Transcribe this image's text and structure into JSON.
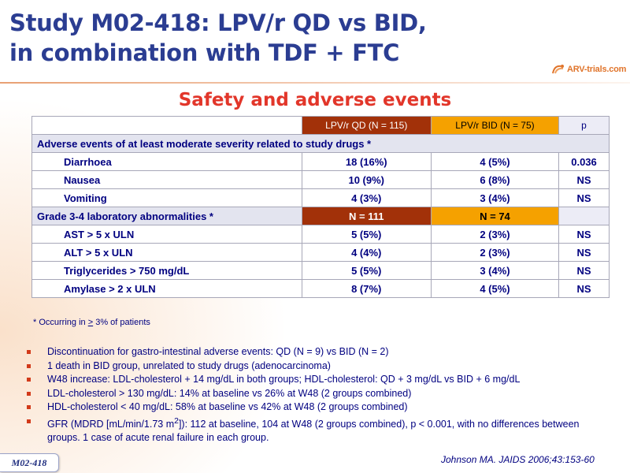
{
  "title": {
    "line1": "Study M02-418: LPV/r QD vs BID,",
    "line2": "in combination with TDF + FTC"
  },
  "logo": {
    "text": "ARV-trials.com",
    "icon": "arv-trials-logo-icon"
  },
  "subtitle": "Safety and adverse events",
  "table": {
    "header": {
      "qd": "LPV/r QD (N = 115)",
      "bid": "LPV/r BID (N = 75)",
      "p": "p"
    },
    "section1": "Adverse events of at least moderate severity related to study drugs *",
    "section1_rows": [
      {
        "label": "Diarrhoea",
        "qd": "18 (16%)",
        "bid": "4 (5%)",
        "p": "0.036"
      },
      {
        "label": "Nausea",
        "qd": "10 (9%)",
        "bid": "6 (8%)",
        "p": "NS"
      },
      {
        "label": "Vomiting",
        "qd": "4 (3%)",
        "bid": "3 (4%)",
        "p": "NS"
      }
    ],
    "section2": {
      "label": "Grade 3-4 laboratory abnormalities *",
      "qd": "N = 111",
      "bid": "N = 74"
    },
    "section2_rows": [
      {
        "label": "AST > 5 x ULN",
        "qd": "5 (5%)",
        "bid": "2 (3%)",
        "p": "NS"
      },
      {
        "label": "ALT > 5 x ULN",
        "qd": "4 (4%)",
        "bid": "2 (3%)",
        "p": "NS"
      },
      {
        "label": "Triglycerides > 750 mg/dL",
        "qd": "5 (5%)",
        "bid": "3 (4%)",
        "p": "NS"
      },
      {
        "label": "Amylase > 2 x ULN",
        "qd": "8 (7%)",
        "bid": "4 (5%)",
        "p": "NS"
      }
    ]
  },
  "footnote": {
    "pre": "* Occurring in ",
    "sym": ">",
    "post": " 3% of patients"
  },
  "bullets": [
    "Discontinuation for gastro-intestinal adverse events: QD (N = 9) vs BID (N = 2)",
    "1 death in BID group, unrelated to study drugs (adenocarcinoma)",
    "W48 increase: LDL-cholesterol + 14 mg/dL in both groups; HDL-cholesterol: QD + 3 mg/dL vs BID + 6 mg/dL",
    "LDL-cholesterol > 130 mg/dL: 14% at baseline vs 26% at W48 (2 groups combined)",
    "HDL-cholesterol < 40 mg/dL: 58% at baseline vs 42% at W48 (2 groups combined)"
  ],
  "gfr_bullet": {
    "pre": "GFR (MDRD [mL/min/1.73 m",
    "sup": "2",
    "post": "]): 112 at baseline, 104 at W48 (2 groups combined), p < 0.001, with no differences between groups. 1 case of acute renal failure in each group."
  },
  "citation": "Johnson MA. JAIDS 2006;43:153-60",
  "badge": "M02-418",
  "colors": {
    "title": "#2b3d92",
    "subtitle": "#e2362a",
    "qd_header": "#a23109",
    "bid_header": "#f5a100",
    "body_text": "#000080"
  }
}
